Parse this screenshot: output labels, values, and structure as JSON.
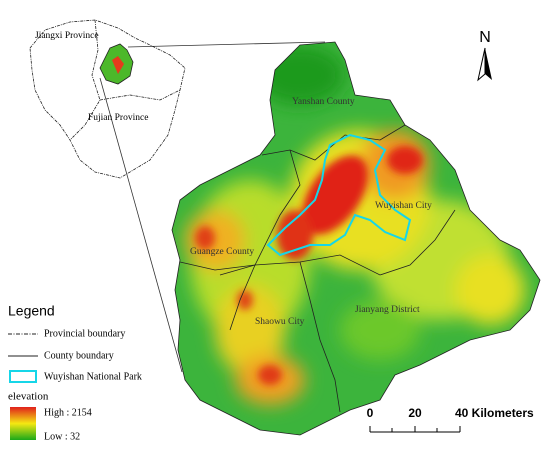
{
  "inset": {
    "labels": [
      "Jiangxi Province",
      "Fujian Province"
    ]
  },
  "north_arrow": "N",
  "counties": [
    "Yanshan County",
    "Wuyishan City",
    "Guangze County",
    "Shaowu City",
    "Jianyang District"
  ],
  "legend": {
    "title": "Legend",
    "items": [
      "Provincial boundary",
      "County boundary",
      "Wuyishan National Park"
    ],
    "elevation": {
      "title": "elevation",
      "high": "High : 2154",
      "low": "Low : 32"
    }
  },
  "scale_bar": [
    "0",
    "20",
    "40 Kilometers"
  ]
}
